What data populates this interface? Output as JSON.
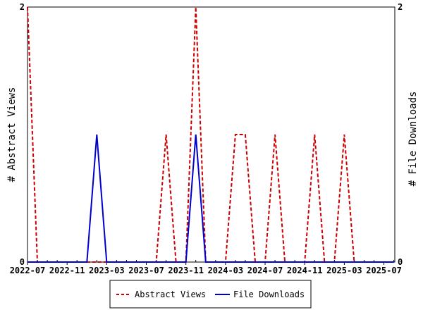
{
  "chart_data": {
    "type": "line",
    "x_tick_labels": [
      "2022-07",
      "2022-11",
      "2023-03",
      "2023-07",
      "2023-11",
      "2024-03",
      "2024-07",
      "2024-11",
      "2025-03",
      "2025-07"
    ],
    "x_tick_months": [
      0,
      4,
      8,
      12,
      16,
      20,
      24,
      28,
      32,
      36
    ],
    "x_range_months": [
      0,
      37.1
    ],
    "ylabel_left": "# Abstract Views",
    "ylabel_right": "# File Downloads",
    "ylim_left": [
      0,
      2
    ],
    "ylim_right": [
      0,
      2
    ],
    "y_ticks_left": [
      "0",
      "2"
    ],
    "y_ticks_right": [
      "0",
      "2"
    ],
    "grid": false,
    "legend_position": "bottom",
    "series": [
      {
        "name": "Abstract Views",
        "color": "#cc0000",
        "dash": "dashed",
        "axis": "left",
        "x": [
          0,
          1,
          2,
          3,
          4,
          5,
          6,
          7,
          8,
          9,
          10,
          11,
          12,
          13,
          14,
          15,
          16,
          17,
          18,
          19,
          20,
          21,
          22,
          23,
          24,
          25,
          26,
          27,
          28,
          29,
          30,
          31,
          32,
          33,
          34,
          35,
          36,
          37
        ],
        "values": [
          2,
          0,
          0,
          0,
          0,
          0,
          0,
          0,
          0,
          0,
          0,
          0,
          0,
          0,
          1,
          0,
          0,
          2,
          0,
          0,
          0,
          1,
          1,
          0,
          0,
          1,
          0,
          0,
          0,
          1,
          0,
          0,
          1,
          0,
          0,
          0,
          0,
          0
        ]
      },
      {
        "name": "File Downloads",
        "color": "#0000cc",
        "dash": "solid",
        "axis": "right",
        "x": [
          0,
          1,
          2,
          3,
          4,
          5,
          6,
          7,
          8,
          9,
          10,
          11,
          12,
          13,
          14,
          15,
          16,
          17,
          18,
          19,
          20,
          21,
          22,
          23,
          24,
          25,
          26,
          27,
          28,
          29,
          30,
          31,
          32,
          33,
          34,
          35,
          36,
          37
        ],
        "values": [
          0,
          0,
          0,
          0,
          0,
          0,
          0,
          1,
          0,
          0,
          0,
          0,
          0,
          0,
          0,
          0,
          0,
          1,
          0,
          0,
          0,
          0,
          0,
          0,
          0,
          0,
          0,
          0,
          0,
          0,
          0,
          0,
          0,
          0,
          0,
          0,
          0,
          0
        ]
      }
    ]
  }
}
